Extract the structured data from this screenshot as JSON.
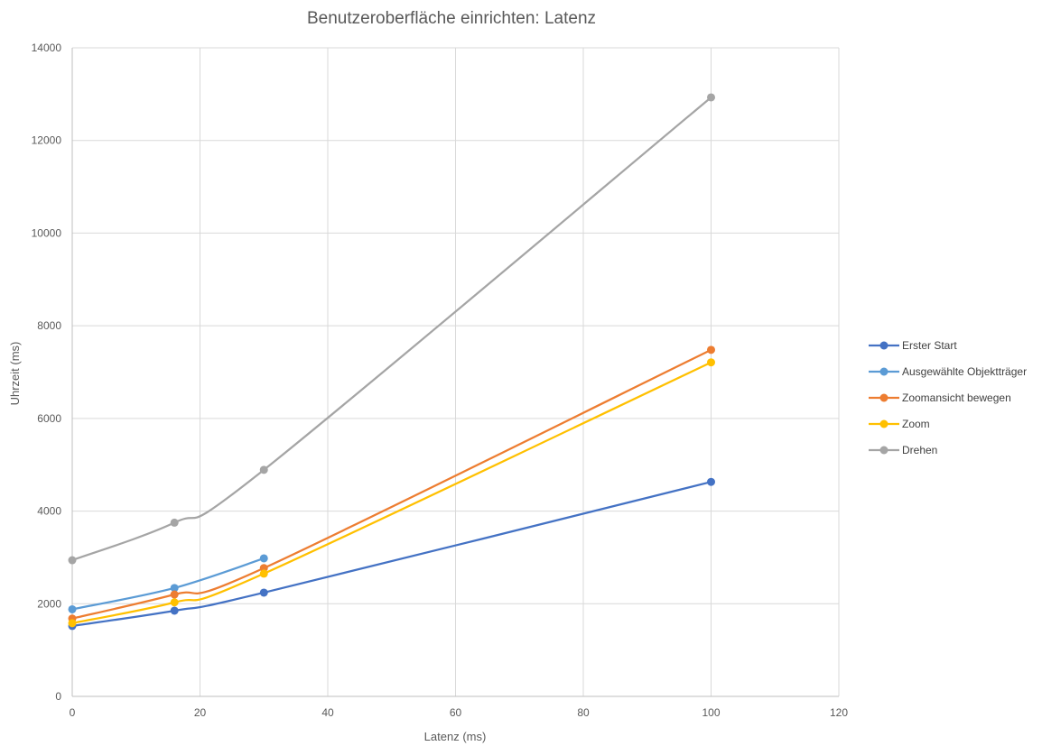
{
  "chart_data": {
    "type": "line",
    "title": "Benutzeroberfläche einrichten: Latenz",
    "xlabel": "Latenz (ms)",
    "ylabel": "Uhrzeit (ms)",
    "xlim": [
      0,
      120
    ],
    "ylim": [
      0,
      14000
    ],
    "xticks": [
      0,
      20,
      40,
      60,
      80,
      100,
      120
    ],
    "yticks": [
      0,
      2000,
      4000,
      6000,
      8000,
      10000,
      12000,
      14000
    ],
    "grid": true,
    "smooth": true,
    "legend_position": "right",
    "series": [
      {
        "name": "Erster Start",
        "color": "#4472C4",
        "x": [
          0,
          16,
          30,
          100
        ],
        "y": [
          1520,
          1850,
          2240,
          4630
        ]
      },
      {
        "name": "Ausgewählte Objektträger",
        "color": "#5B9BD5",
        "x": [
          0,
          16,
          30
        ],
        "y": [
          1880,
          2340,
          2980
        ]
      },
      {
        "name": "Zoomansicht bewegen",
        "color": "#ED7D31",
        "x": [
          0,
          16,
          30,
          100
        ],
        "y": [
          1680,
          2200,
          2770,
          7480
        ]
      },
      {
        "name": "Zoom",
        "color": "#FFC000",
        "x": [
          0,
          16,
          30,
          100
        ],
        "y": [
          1580,
          2030,
          2650,
          7210
        ]
      },
      {
        "name": "Drehen",
        "color": "#A5A5A5",
        "x": [
          0,
          16,
          30,
          100
        ],
        "y": [
          2940,
          3750,
          4890,
          12930
        ]
      }
    ]
  }
}
